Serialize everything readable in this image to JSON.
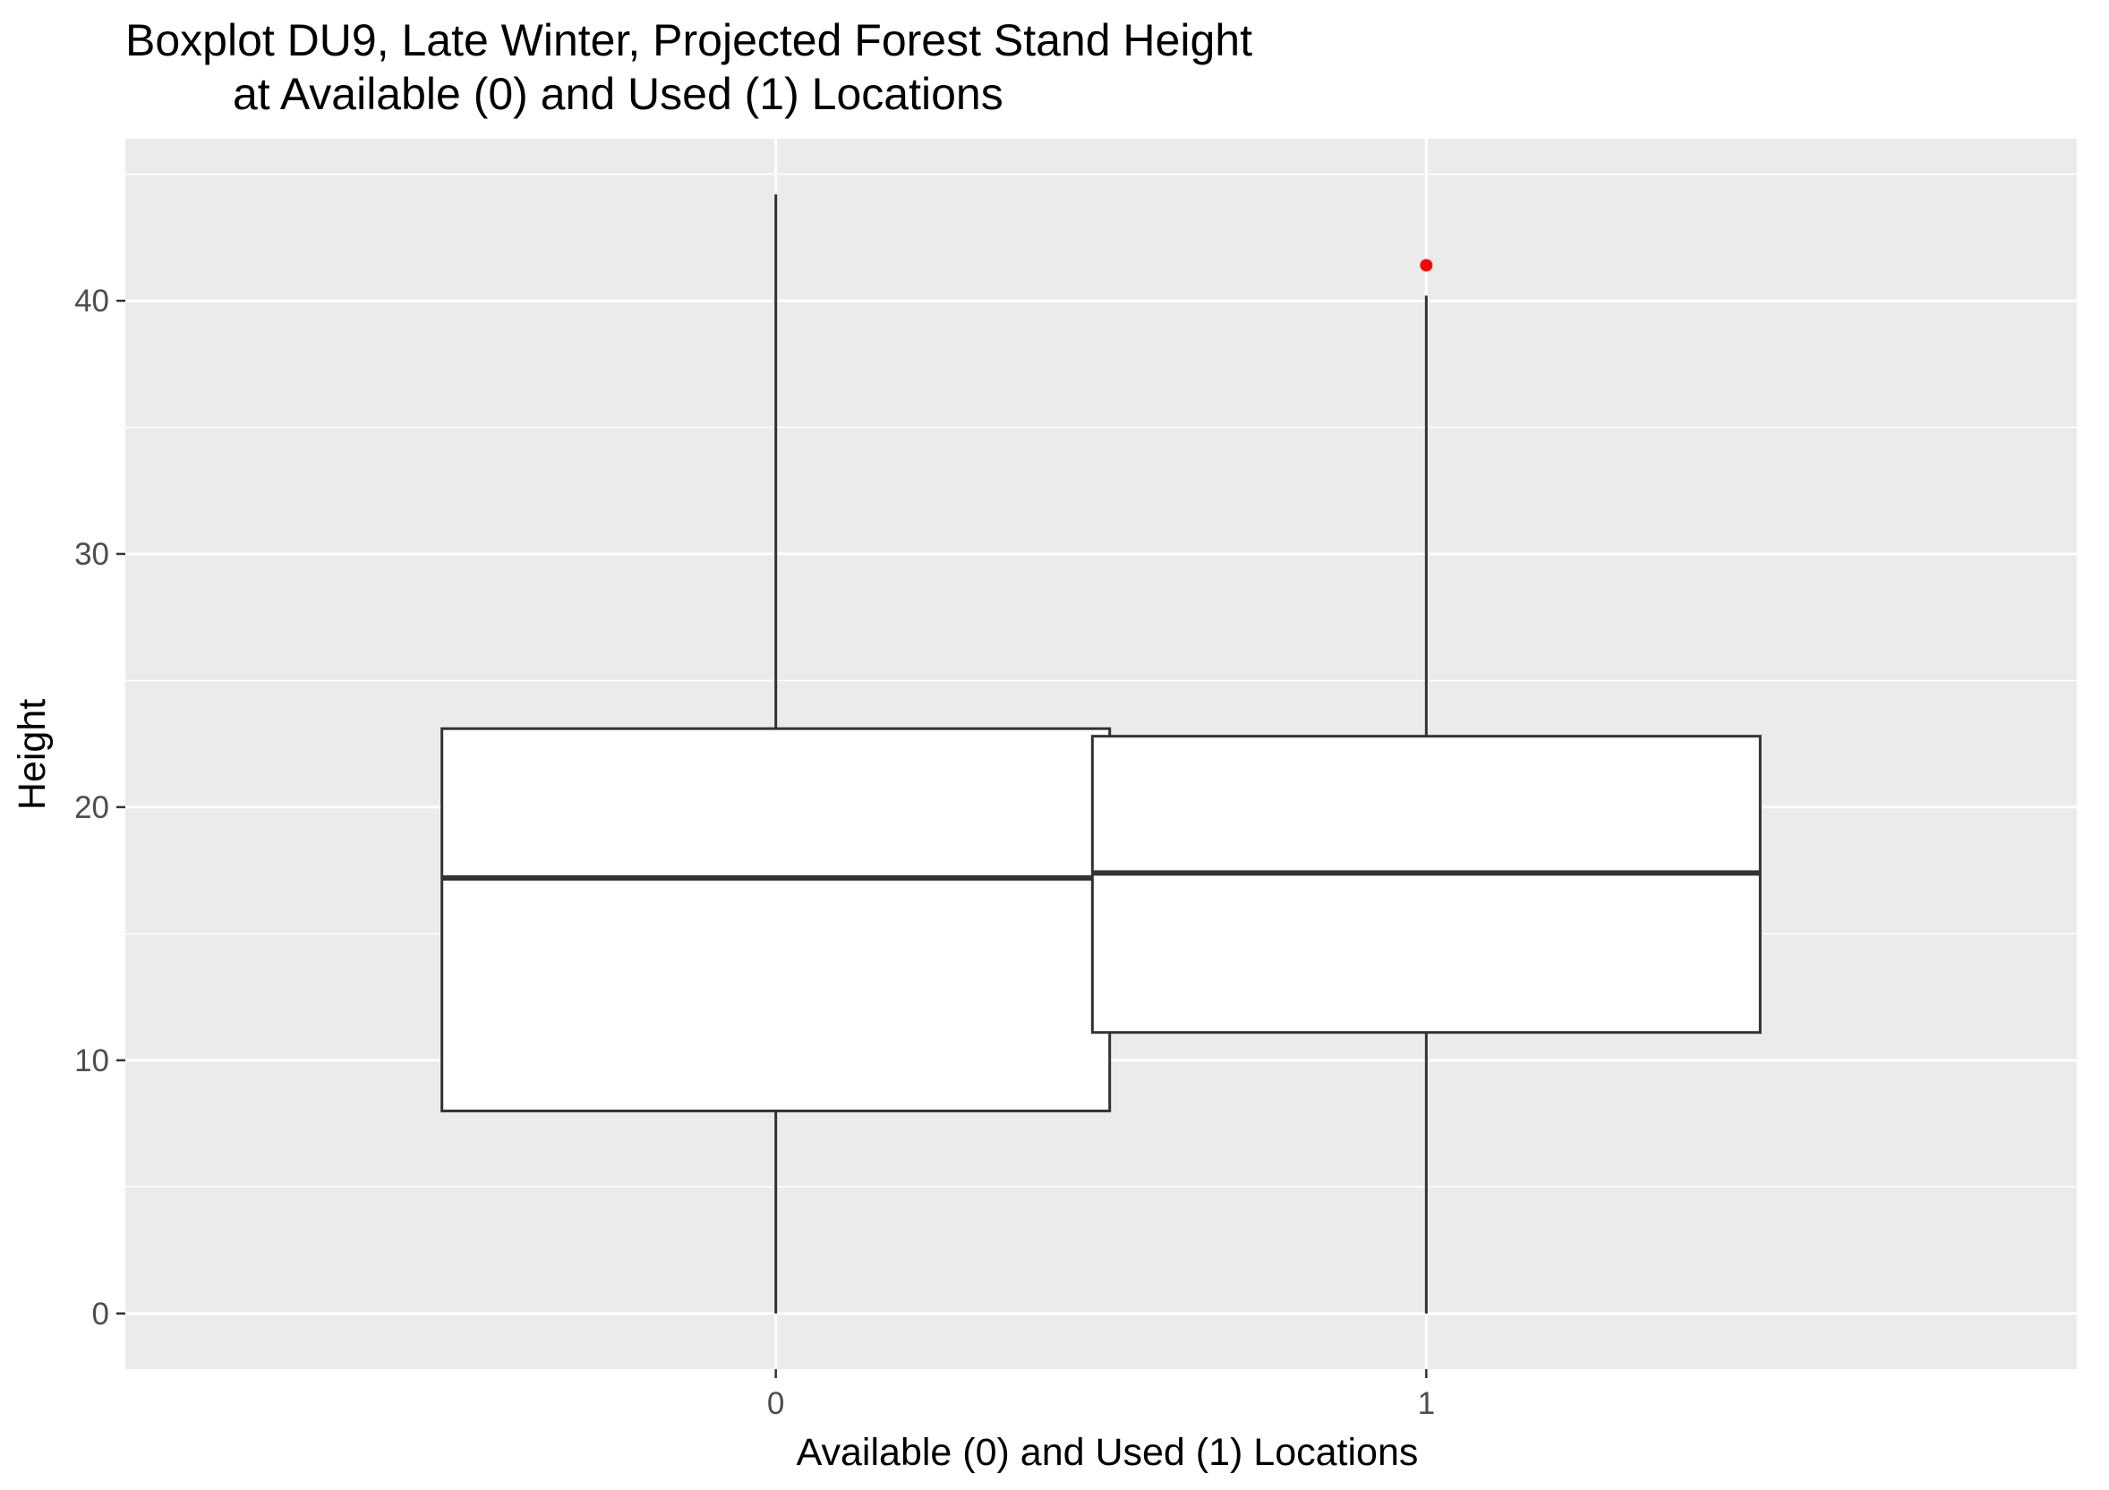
{
  "chart_data": {
    "type": "boxplot",
    "title": "Boxplot DU9, Late Winter, Projected Forest Stand Height",
    "subtitle": "at Available (0) and Used (1) Locations",
    "xlabel": "Available (0) and Used (1) Locations",
    "ylabel": "Height",
    "categories": [
      "0",
      "1"
    ],
    "ylim": [
      -2.2,
      46.4
    ],
    "y_ticks": [
      0,
      10,
      20,
      30,
      40
    ],
    "y_tick_labels": [
      "0",
      "10",
      "20",
      "30",
      "40"
    ],
    "grid": true,
    "boxes": [
      {
        "category": "0",
        "whisker_low": 0,
        "q1": 8.0,
        "median": 17.2,
        "q3": 23.1,
        "whisker_high": 44.2,
        "outliers": []
      },
      {
        "category": "1",
        "whisker_low": 0,
        "q1": 11.1,
        "median": 17.4,
        "q3": 22.8,
        "whisker_high": 40.2,
        "outliers": [
          41.4
        ]
      }
    ],
    "colors": {
      "panel_background": "#ebebeb",
      "grid_line": "#ffffff",
      "box_fill": "#ffffff",
      "box_stroke": "#333333",
      "outlier": "#ff0000",
      "tick_label": "#4d4d4d"
    }
  }
}
